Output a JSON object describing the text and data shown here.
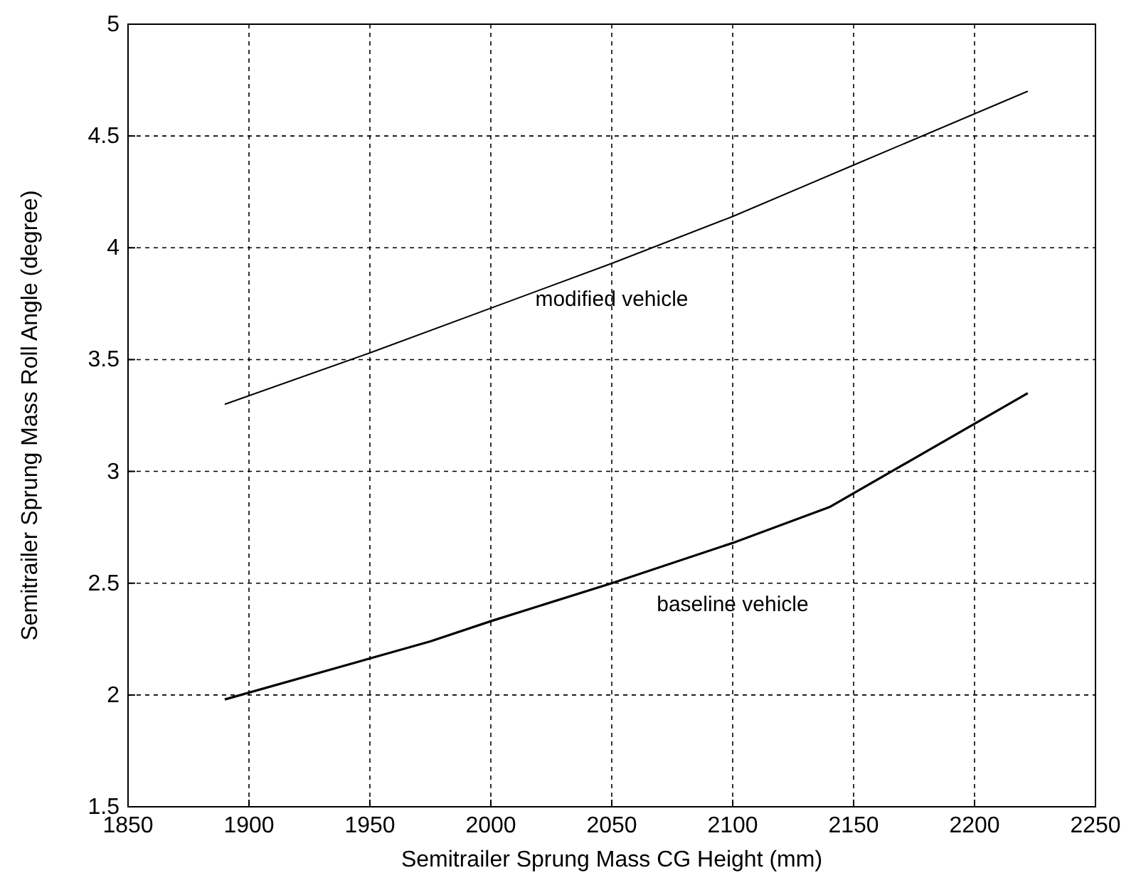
{
  "chart_data": {
    "type": "line",
    "xlabel": "Semitrailer Sprung Mass CG Height (mm)",
    "ylabel": "Semitrailer Sprung Mass Roll Angle (degree)",
    "xlim": [
      1850,
      2250
    ],
    "xticks": [
      1850,
      1900,
      1950,
      2000,
      2050,
      2100,
      2150,
      2200,
      2250
    ],
    "ylim": [
      1.5,
      5
    ],
    "yticks": [
      1.5,
      2,
      2.5,
      3,
      3.5,
      4,
      4.5,
      5
    ],
    "grid": true,
    "series": [
      {
        "name": "modified vehicle",
        "color": "#000000",
        "x": [
          1890,
          1950,
          2000,
          2050,
          2100,
          2150,
          2222
        ],
        "values": [
          3.3,
          3.53,
          3.73,
          3.93,
          4.14,
          4.37,
          4.7
        ]
      },
      {
        "name": "baseline vehicle",
        "color": "#000000",
        "x": [
          1890,
          1975,
          2000,
          2050,
          2100,
          2140,
          2222
        ],
        "values": [
          1.98,
          2.24,
          2.33,
          2.5,
          2.68,
          2.84,
          3.35
        ]
      }
    ]
  }
}
